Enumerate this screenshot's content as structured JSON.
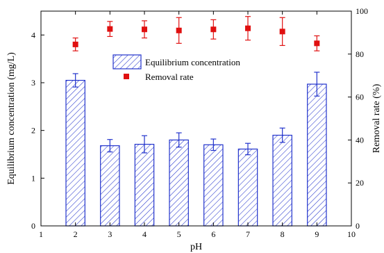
{
  "chart_data": {
    "type": "bar",
    "xlabel": "pH",
    "ylabel_left": "Equilibrium concentration (mg/L)",
    "ylabel_right": "Removal rate (%)",
    "xlim": [
      1,
      10
    ],
    "ylim_left": [
      0,
      4.5
    ],
    "ylim_right": [
      0,
      100
    ],
    "x_ticks": [
      1,
      2,
      3,
      4,
      5,
      6,
      7,
      8,
      9,
      10
    ],
    "y_left_ticks": [
      0,
      1,
      2,
      3,
      4
    ],
    "y_right_ticks": [
      0,
      20,
      40,
      60,
      80,
      100
    ],
    "grid": false,
    "legend_position": "upper-center",
    "series": [
      {
        "name": "Equilibrium concentration",
        "kind": "bar",
        "axis": "left",
        "x": [
          2,
          3,
          4,
          5,
          6,
          7,
          8,
          9
        ],
        "values": [
          3.05,
          1.68,
          1.71,
          1.8,
          1.7,
          1.61,
          1.9,
          2.97
        ],
        "errors": [
          0.14,
          0.13,
          0.18,
          0.15,
          0.12,
          0.12,
          0.15,
          0.25
        ],
        "color": "#2233cc",
        "pattern": "diagonal-hatch"
      },
      {
        "name": "Removal rate",
        "kind": "scatter",
        "axis": "right",
        "x": [
          2,
          3,
          4,
          5,
          6,
          7,
          8,
          9
        ],
        "values": [
          84.5,
          91.7,
          91.5,
          91.0,
          91.5,
          92.0,
          90.5,
          85.0
        ],
        "errors": [
          3.0,
          3.5,
          4.0,
          6.0,
          4.5,
          5.5,
          6.5,
          3.5
        ],
        "color": "#e01010",
        "marker": "square"
      }
    ]
  }
}
